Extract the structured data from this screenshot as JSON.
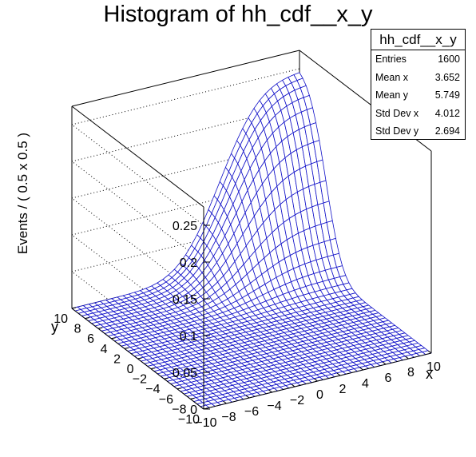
{
  "chart_data": {
    "type": "surface3d",
    "title": "Histogram of hh_cdf__x_y",
    "zlabel": "Events / ( 0.5 x 0.5 )",
    "xlabel": "x",
    "ylabel": "y",
    "xlim": [
      -10,
      10
    ],
    "ylim": [
      -10,
      10
    ],
    "zlim": [
      0,
      0.275
    ],
    "x_ticks": [
      "−10",
      "−8",
      "−6",
      "−4",
      "−2",
      "0",
      "2",
      "4",
      "6",
      "8",
      "10"
    ],
    "y_ticks": [
      "−10",
      "−8",
      "−6",
      "−4",
      "−2",
      "0",
      "2",
      "4",
      "6",
      "8",
      "10"
    ],
    "z_ticks": [
      "0",
      "0.05",
      "0.1",
      "0.15",
      "0.2",
      "0.25"
    ],
    "grid": true,
    "mesh_color": "#1010c8",
    "surface": {
      "function": "product of normal CDFs",
      "x_mean": 3.0,
      "x_sigma": 2.8,
      "y_mean": 6.0,
      "y_sigma": 2.0,
      "max": 0.252
    },
    "stats": {
      "title": "hh_cdf__x_y",
      "rows": [
        {
          "label": "Entries",
          "value": "1600"
        },
        {
          "label": "Mean x",
          "value": "3.652"
        },
        {
          "label": "Mean y",
          "value": "5.749"
        },
        {
          "label": "Std Dev x",
          "value": "4.012"
        },
        {
          "label": "Std Dev y",
          "value": "2.694"
        }
      ]
    }
  }
}
